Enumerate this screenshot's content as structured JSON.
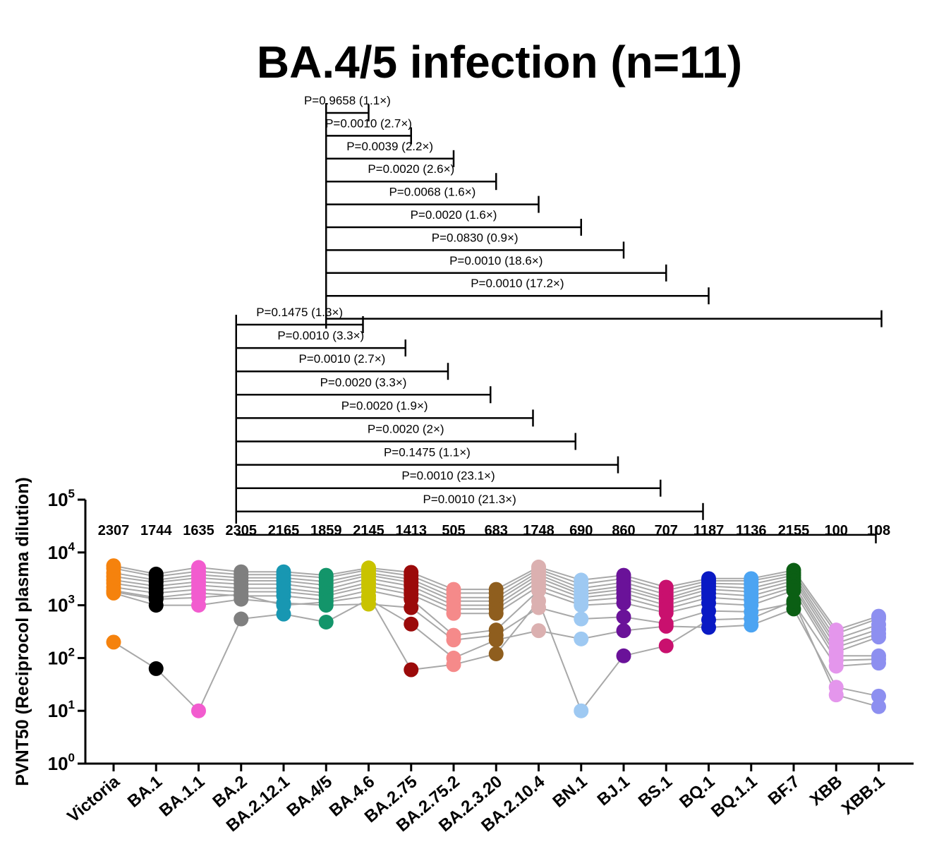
{
  "chart_data": {
    "type": "scatter",
    "style": "paired dot plot with connecting lines, log scale",
    "title": "BA.4/5 infection (n=11)",
    "ylabel": "PVNT50 (Reciprocol plasma dilution)",
    "xlabel": "",
    "yscale": "log10",
    "ylim": [
      1,
      100000
    ],
    "y_ticks": [
      {
        "base": "10",
        "exp": "0"
      },
      {
        "base": "10",
        "exp": "1"
      },
      {
        "base": "10",
        "exp": "2"
      },
      {
        "base": "10",
        "exp": "3"
      },
      {
        "base": "10",
        "exp": "4"
      },
      {
        "base": "10",
        "exp": "5"
      }
    ],
    "categories": [
      "Victoria",
      "BA.1",
      "BA.1.1",
      "BA.2",
      "BA.2.12.1",
      "BA.4/5",
      "BA.4.6",
      "BA.2.75",
      "BA.2.75.2",
      "BA.2.3.20",
      "BA.2.10.4",
      "BN.1",
      "BJ.1",
      "BS.1",
      "BQ.1",
      "BQ.1.1",
      "BF.7",
      "XBB",
      "XBB.1"
    ],
    "geometric_means": [
      "2307",
      "1744",
      "1635",
      "2305",
      "2165",
      "1859",
      "2145",
      "1413",
      "505",
      "683",
      "1748",
      "690",
      "860",
      "707",
      "1187",
      "1136",
      "2155",
      "100",
      "108"
    ],
    "colors": [
      "#f5820d",
      "#000000",
      "#f25ccf",
      "#7f7f7f",
      "#1897b2",
      "#13956a",
      "#c9c300",
      "#9b0a0a",
      "#f58a8a",
      "#8f5e1e",
      "#dbb0b0",
      "#9ec9f2",
      "#6a1299",
      "#c9106e",
      "#0a1ac4",
      "#4ca4f2",
      "#0b5f14",
      "#e496ec",
      "#8d8ff0"
    ],
    "line_color": "#a8a8a8",
    "series": [
      {
        "name": "Participant 1",
        "values": [
          5600,
          3900,
          5200,
          4300,
          4300,
          3700,
          5100,
          4200,
          2000,
          2000,
          5300,
          3000,
          3700,
          2200,
          3200,
          3200,
          4600,
          340,
          620
        ]
      },
      {
        "name": "Participant 2",
        "values": [
          5000,
          3500,
          4400,
          3800,
          3800,
          3300,
          4700,
          3600,
          1700,
          1700,
          4800,
          2500,
          3200,
          1900,
          2900,
          2900,
          4100,
          290,
          560
        ]
      },
      {
        "name": "Participant 3",
        "values": [
          4100,
          3000,
          3800,
          3300,
          3300,
          2800,
          4100,
          3100,
          1400,
          1400,
          4300,
          2100,
          2700,
          1600,
          2600,
          2500,
          3700,
          230,
          430
        ]
      },
      {
        "name": "Participant 4",
        "values": [
          3500,
          2700,
          3300,
          2900,
          2900,
          2400,
          3700,
          2700,
          1200,
          1200,
          3800,
          1800,
          2300,
          1350,
          2300,
          2100,
          3300,
          190,
          350
        ]
      },
      {
        "name": "Participant 5",
        "values": [
          3000,
          2300,
          2800,
          2500,
          2500,
          2000,
          3200,
          2300,
          1000,
          1000,
          3300,
          1600,
          2000,
          1200,
          2000,
          1800,
          2900,
          160,
          290
        ]
      },
      {
        "name": "Participant 6",
        "values": [
          2600,
          2000,
          2400,
          2100,
          2100,
          1700,
          2700,
          1900,
          850,
          850,
          2800,
          1400,
          1700,
          1000,
          1700,
          1500,
          2500,
          130,
          250
        ]
      },
      {
        "name": "Participant 7",
        "values": [
          2200,
          1700,
          2000,
          1800,
          1800,
          1500,
          2300,
          1600,
          700,
          700,
          2300,
          1200,
          1400,
          850,
          1400,
          1250,
          2200,
          110,
          110
        ]
      },
      {
        "name": "Participant 8",
        "values": [
          1900,
          1400,
          1700,
          1500,
          1500,
          1250,
          1900,
          1300,
          270,
          340,
          1900,
          1000,
          1100,
          720,
          1100,
          1000,
          1900,
          90,
          95
        ]
      },
      {
        "name": "Participant 9",
        "values": [
          1700,
          1000,
          1000,
          1300,
          1100,
          1000,
          1050,
          900,
          220,
          270,
          900,
          550,
          600,
          450,
          780,
          750,
          1100,
          70,
          80
        ]
      },
      {
        "name": "Participant 10",
        "values": [
          200,
          63,
          10,
          550,
          680,
          480,
          1300,
          440,
          100,
          220,
          330,
          230,
          330,
          400,
          380,
          420,
          850,
          28,
          19
        ]
      },
      {
        "name": "Participant 11",
        "values": [
          1800,
          1300,
          1400,
          1600,
          1000,
          1150,
          1500,
          60,
          75,
          120,
          1200,
          10,
          110,
          170,
          530,
          560,
          1200,
          20,
          12
        ]
      }
    ],
    "comparisons": [
      {
        "group": "BA.4/5",
        "from": "BA.4/5",
        "to": "BA.4.6",
        "label": "P=0.9658 (1.1×)"
      },
      {
        "group": "BA.4/5",
        "from": "BA.4/5",
        "to": "BA.2.75",
        "label": "P=0.0010 (2.7×)"
      },
      {
        "group": "BA.4/5",
        "from": "BA.4/5",
        "to": "BA.2.75.2",
        "label": "P=0.0039 (2.2×)"
      },
      {
        "group": "BA.4/5",
        "from": "BA.4/5",
        "to": "BA.2.3.20",
        "label": "P=0.0020 (2.6×)"
      },
      {
        "group": "BA.4/5",
        "from": "BA.4/5",
        "to": "BA.2.10.4",
        "label": "P=0.0068 (1.6×)"
      },
      {
        "group": "BA.4/5",
        "from": "BA.4/5",
        "to": "BN.1",
        "label": "P=0.0020 (1.6×)"
      },
      {
        "group": "BA.4/5",
        "from": "BA.4/5",
        "to": "BJ.1",
        "label": "P=0.0830 (0.9×)"
      },
      {
        "group": "BA.4/5",
        "from": "BA.4/5",
        "to": "BS.1",
        "label": "P=0.0010 (18.6×)"
      },
      {
        "group": "BA.4/5",
        "from": "BA.4/5",
        "to": "BQ.1",
        "label": "P=0.0010 (17.2×)"
      },
      {
        "group": "BA.4/5",
        "from": "BA.4/5",
        "to": "XBB.1",
        "label": ""
      },
      {
        "group": "BA.2",
        "from": "BA.2",
        "to": "BA.4.6",
        "label": "P=0.1475 (1.3×)"
      },
      {
        "group": "BA.2",
        "from": "BA.2",
        "to": "BA.2.75",
        "label": "P=0.0010 (3.3×)"
      },
      {
        "group": "BA.2",
        "from": "BA.2",
        "to": "BA.2.75.2",
        "label": "P=0.0010 (2.7×)"
      },
      {
        "group": "BA.2",
        "from": "BA.2",
        "to": "BA.2.3.20",
        "label": "P=0.0020 (3.3×)"
      },
      {
        "group": "BA.2",
        "from": "BA.2",
        "to": "BA.2.10.4",
        "label": "P=0.0020 (1.9×)"
      },
      {
        "group": "BA.2",
        "from": "BA.2",
        "to": "BN.1",
        "label": "P=0.0020 (2×)"
      },
      {
        "group": "BA.2",
        "from": "BA.2",
        "to": "BJ.1",
        "label": "P=0.1475 (1.1×)"
      },
      {
        "group": "BA.2",
        "from": "BA.2",
        "to": "BS.1",
        "label": "P=0.0010 (23.1×)"
      },
      {
        "group": "BA.2",
        "from": "BA.2",
        "to": "BQ.1",
        "label": "P=0.0010 (21.3×)"
      },
      {
        "group": "BA.2",
        "from": "BA.2",
        "to": "XBB.1",
        "label": ""
      }
    ]
  }
}
